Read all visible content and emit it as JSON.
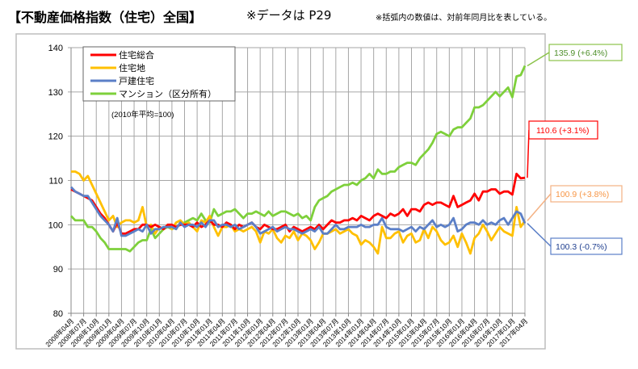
{
  "header": {
    "title": "【不動産価格指数（住宅）全国】",
    "data_note": "※データは P29",
    "paren_note": "※括弧内の数値は、対前年同月比を表している。"
  },
  "chart_data": {
    "type": "line",
    "base_note": "(2010年平均=100)",
    "ylim": [
      80,
      140
    ],
    "yticks": [
      80,
      90,
      100,
      110,
      120,
      130,
      140
    ],
    "grid": true,
    "legend_position": "top-left",
    "x_start": "2008-04",
    "x_end": "2017-04",
    "x_frequency": "monthly",
    "xtick_labels": [
      "2008年04月",
      "2008年07月",
      "2008年10月",
      "2009年01月",
      "2009年04月",
      "2009年07月",
      "2009年10月",
      "2010年01月",
      "2010年04月",
      "2010年07月",
      "2010年10月",
      "2011年01月",
      "2011年04月",
      "2011年07月",
      "2011年10月",
      "2012年01月",
      "2012年04月",
      "2012年07月",
      "2012年10月",
      "2013年01月",
      "2013年04月",
      "2013年07月",
      "2013年10月",
      "2014年01月",
      "2014年04月",
      "2014年07月",
      "2014年10月",
      "2015年01月",
      "2015年04月",
      "2015年07月",
      "2015年10月",
      "2016年01月",
      "2016年04月",
      "2016年07月",
      "2016年10月",
      "2017年01月",
      "2017年04月"
    ],
    "series": [
      {
        "name": "住宅総合",
        "color": "#ff0000",
        "callout": "110.6 (+3.1%)",
        "values": [
          108,
          107.5,
          107,
          106.5,
          106,
          105.5,
          104,
          102.5,
          101.5,
          100,
          98.5,
          100.5,
          98,
          98,
          98.5,
          99,
          99,
          100,
          100,
          99.5,
          100,
          99.5,
          99,
          100,
          100,
          99.5,
          100,
          100,
          100,
          99.5,
          100.5,
          99.5,
          100,
          101,
          100,
          100,
          99.5,
          100.5,
          100,
          99,
          100,
          99.5,
          100,
          100.5,
          99.5,
          99,
          100,
          99.5,
          99,
          99,
          99.5,
          100,
          98.5,
          99.5,
          99,
          98.5,
          99,
          99.5,
          99,
          100,
          99,
          100,
          101,
          100.5,
          100.5,
          101,
          101,
          101.5,
          101,
          102,
          101.5,
          101,
          102,
          102.5,
          102,
          101.5,
          102.5,
          102,
          102.5,
          103.5,
          102,
          103.5,
          103.5,
          103,
          104.5,
          105,
          104.5,
          105,
          105,
          104.5,
          104,
          106.5,
          104,
          104.5,
          105,
          105.5,
          107,
          105.5,
          107.5,
          107.5,
          108,
          108,
          107,
          107.5,
          107.5,
          106.8,
          111.5,
          110.5,
          110.6
        ]
      },
      {
        "name": "住宅地",
        "color": "#ffc000",
        "callout": "100.9 (+3.8%)",
        "values": [
          112,
          112,
          111.5,
          110,
          111,
          109,
          107,
          105,
          103,
          101,
          102,
          99.5,
          100.5,
          101,
          101,
          100.5,
          101,
          104,
          99.5,
          100,
          98,
          99.5,
          99,
          100,
          99,
          100.5,
          101,
          100,
          100.5,
          99.5,
          98.5,
          101,
          100.5,
          102,
          99.5,
          97.5,
          99.5,
          99.5,
          100,
          98.5,
          99,
          98.5,
          99,
          99.5,
          98.5,
          96,
          98.5,
          98,
          99,
          97,
          96,
          97.5,
          97,
          98.5,
          96.5,
          98,
          97.5,
          96.5,
          94.5,
          96,
          98,
          98,
          98.5,
          99,
          98,
          98.5,
          99,
          98,
          97.5,
          95.5,
          96.5,
          96,
          95,
          93.5,
          99.5,
          97,
          97,
          98,
          98.5,
          96,
          97.5,
          98,
          96,
          96.5,
          99,
          97,
          99.5,
          98.5,
          96.5,
          95.5,
          96,
          97.5,
          95,
          98,
          96,
          93.5,
          97,
          98,
          100,
          98.5,
          96.5,
          98,
          99.5,
          98.5,
          98,
          97.5,
          104,
          99.5,
          100.9
        ]
      },
      {
        "name": "戸建住宅",
        "color": "#5b7fc7",
        "callout": "100.3 (-0.7%)",
        "values": [
          108.5,
          107.5,
          107,
          106.5,
          106.5,
          105,
          103.5,
          102,
          101,
          100,
          98.5,
          101.5,
          97.5,
          97.5,
          98,
          98.5,
          99,
          98.5,
          100,
          98,
          99,
          99,
          99.5,
          99.5,
          99.5,
          99,
          100.5,
          99.5,
          100,
          100,
          99.5,
          100.5,
          99.5,
          101,
          101,
          99.5,
          100,
          100,
          99.5,
          100,
          99,
          99.5,
          100,
          100.5,
          99.5,
          98,
          98.5,
          99,
          99.5,
          98.5,
          99,
          99.5,
          99,
          99,
          98.5,
          98,
          98.5,
          99,
          98.5,
          99.5,
          98,
          98,
          99,
          100,
          99,
          99,
          99.5,
          99.5,
          99.5,
          100,
          99.5,
          99.5,
          100,
          100,
          101.5,
          99.5,
          99,
          99,
          99,
          98.5,
          99,
          99.5,
          98.5,
          99.5,
          99,
          100,
          101,
          99.5,
          100,
          99.5,
          100,
          101.5,
          98.5,
          99,
          100,
          100.5,
          100.5,
          100,
          101,
          100,
          100.5,
          100,
          101,
          101.5,
          100,
          101.5,
          103,
          102.5,
          100.3
        ]
      },
      {
        "name": "マンション（区分所有）",
        "color": "#7ed03b",
        "callout": "135.9 (+6.4%)",
        "values": [
          102,
          101,
          101,
          101,
          99.5,
          99.5,
          98.5,
          97,
          96,
          94.5,
          94.5,
          94.5,
          94.5,
          94.5,
          94,
          95,
          96,
          96.5,
          96.5,
          99,
          97,
          98,
          99,
          99.5,
          99,
          99.5,
          100,
          100.5,
          101,
          101.5,
          101,
          102.5,
          101,
          100.5,
          103.5,
          102,
          102.5,
          103,
          103,
          103.5,
          102.5,
          101.5,
          102.5,
          102.5,
          103,
          102.5,
          102,
          103,
          102,
          102.5,
          103,
          103,
          102.5,
          102,
          102.5,
          101.5,
          102,
          101,
          104,
          105.5,
          106,
          106.5,
          107.5,
          108,
          108.5,
          109,
          109,
          109.5,
          109,
          110,
          110.5,
          111.5,
          110.5,
          112.5,
          111.5,
          111.5,
          112,
          112,
          113,
          113.5,
          114,
          114,
          113.5,
          115,
          116,
          117,
          118.5,
          120.5,
          121,
          120.5,
          120,
          121.5,
          122,
          122,
          123,
          124,
          126.5,
          126.5,
          127,
          128,
          129,
          130,
          129,
          130,
          131,
          128.8,
          133.5,
          133.8,
          135.9
        ]
      }
    ]
  }
}
